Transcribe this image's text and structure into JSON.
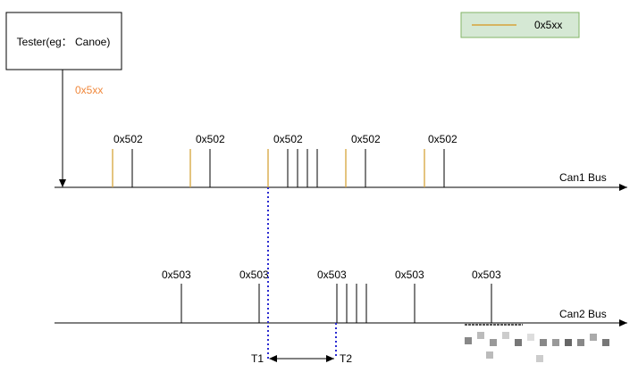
{
  "tester": {
    "label": "Tester(eg： Canoe)"
  },
  "injected_label": "0x5xx",
  "legend": {
    "label": "0x5xx",
    "line_color": "#d6a33a",
    "box_fill": "#d5e8d4",
    "box_stroke": "#82b366"
  },
  "colors": {
    "black": "#000000",
    "injected": "#d6a33a",
    "injected_text": "#f0883c",
    "timing": "#2b2bd1"
  },
  "can1": {
    "label": "Can1 Bus",
    "frame_labels": [
      "0x502",
      "0x502",
      "0x502",
      "0x502",
      "0x502"
    ]
  },
  "can2": {
    "label": "Can2 Bus",
    "frame_labels": [
      "0x503",
      "0x503",
      "0x503",
      "0x503",
      "0x503"
    ]
  },
  "timing": {
    "t1": "T1",
    "t2": "T2"
  }
}
